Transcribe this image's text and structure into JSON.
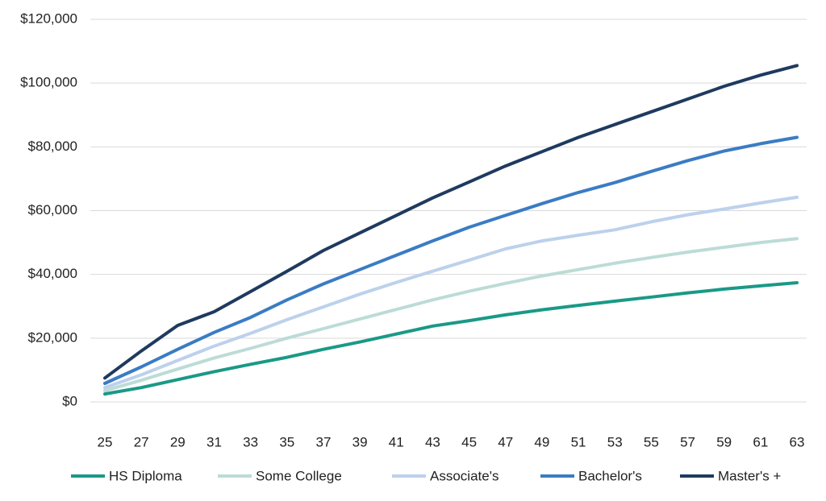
{
  "chart_data": {
    "type": "line",
    "x": [
      25,
      27,
      29,
      31,
      33,
      35,
      37,
      39,
      41,
      43,
      45,
      47,
      49,
      51,
      53,
      55,
      57,
      59,
      61,
      63
    ],
    "xlim": [
      25,
      63
    ],
    "xticks": [
      25,
      27,
      29,
      31,
      33,
      35,
      37,
      39,
      41,
      43,
      45,
      47,
      49,
      51,
      53,
      55,
      57,
      59,
      61,
      63
    ],
    "ylim": [
      0,
      120000
    ],
    "yticks": [
      {
        "value": 0,
        "label": "$0"
      },
      {
        "value": 20000,
        "label": "$20,000"
      },
      {
        "value": 40000,
        "label": "$40,000"
      },
      {
        "value": 60000,
        "label": "$60,000"
      },
      {
        "value": 80000,
        "label": "$80,000"
      },
      {
        "value": 100000,
        "label": "$100,000"
      },
      {
        "value": 120000,
        "label": "$120,000"
      }
    ],
    "grid": true,
    "legend": "bottom",
    "series": [
      {
        "name": "HS Diploma",
        "color": "#1a9988",
        "values": [
          2500,
          4500,
          7000,
          9500,
          11800,
          14000,
          16500,
          18800,
          21300,
          23800,
          25500,
          27300,
          28900,
          30300,
          31600,
          32900,
          34200,
          35400,
          36400,
          37400
        ]
      },
      {
        "name": "Some College",
        "color": "#bcdcd6",
        "values": [
          3500,
          6800,
          10300,
          13800,
          16800,
          20000,
          23000,
          26000,
          29000,
          32000,
          34700,
          37200,
          39500,
          41500,
          43500,
          45300,
          47000,
          48500,
          50000,
          51200
        ]
      },
      {
        "name": "Associate's",
        "color": "#bcd1ec",
        "values": [
          4500,
          8500,
          13000,
          17500,
          21500,
          25800,
          29800,
          33800,
          37500,
          41000,
          44500,
          48000,
          50500,
          52300,
          54000,
          56500,
          58700,
          60500,
          62400,
          64200
        ]
      },
      {
        "name": "Bachelor's",
        "color": "#3a7cc4",
        "values": [
          5800,
          11000,
          16500,
          21800,
          26500,
          32000,
          37000,
          41500,
          46000,
          50500,
          54800,
          58500,
          62200,
          65700,
          68800,
          72300,
          75700,
          78700,
          81000,
          83000
        ]
      },
      {
        "name": "Master's +",
        "color": "#1f3a5f",
        "values": [
          7500,
          16000,
          24000,
          28300,
          34600,
          41000,
          47500,
          53000,
          58500,
          64000,
          69000,
          74000,
          78500,
          83000,
          87000,
          91000,
          95000,
          99000,
          102500,
          105500
        ]
      }
    ]
  }
}
